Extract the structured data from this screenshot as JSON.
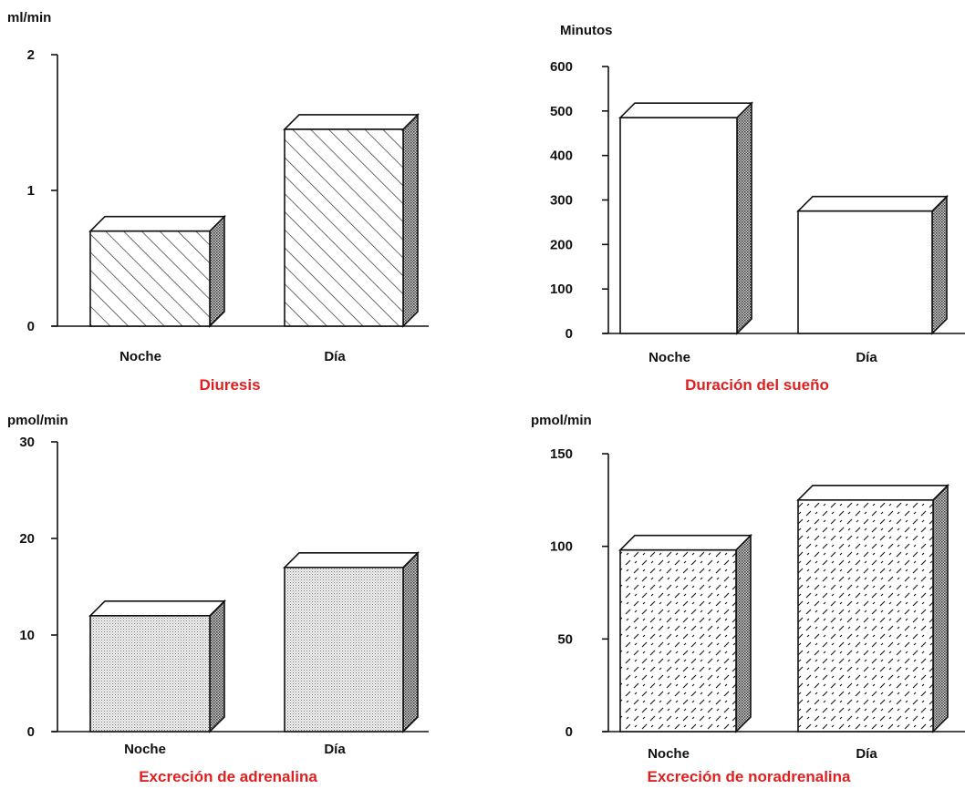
{
  "colors": {
    "title": "#e02020",
    "ink": "#111111",
    "background": "#ffffff"
  },
  "chart_data": [
    {
      "type": "bar",
      "title": "Diuresis",
      "ylabel": "ml/min",
      "categories": [
        "Noche",
        "Día"
      ],
      "values": [
        0.7,
        1.45
      ],
      "ylim": [
        0,
        2
      ],
      "yticks": [
        "0",
        "1",
        "2"
      ],
      "fill_pattern": "diagonal-hatch",
      "grid": false
    },
    {
      "type": "bar",
      "title": "Duración del sueño",
      "ylabel": "Minutos",
      "categories": [
        "Noche",
        "Día"
      ],
      "values": [
        485,
        275
      ],
      "ylim": [
        0,
        600
      ],
      "yticks": [
        "0",
        "100",
        "200",
        "300",
        "400",
        "500",
        "600"
      ],
      "fill_pattern": "plain",
      "grid": false
    },
    {
      "type": "bar",
      "title": "Excreción de adrenalina",
      "ylabel": "pmol/min",
      "categories": [
        "Noche",
        "Día"
      ],
      "values": [
        12,
        17
      ],
      "ylim": [
        0,
        30
      ],
      "yticks": [
        "0",
        "10",
        "20",
        "30"
      ],
      "fill_pattern": "fine-dots",
      "grid": false
    },
    {
      "type": "bar",
      "title": "Excreción de noradrenalina",
      "ylabel": "pmol/min",
      "categories": [
        "Noche",
        "Día"
      ],
      "values": [
        98,
        125
      ],
      "ylim": [
        0,
        150
      ],
      "yticks": [
        "0",
        "50",
        "100",
        "150"
      ],
      "fill_pattern": "dashes",
      "grid": false
    }
  ]
}
